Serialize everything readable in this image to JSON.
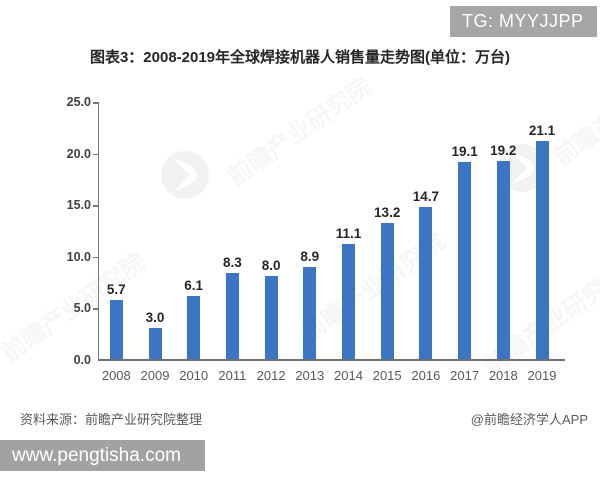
{
  "badge": {
    "text": "TG: MYYJJPP"
  },
  "title": "图表3：2008-2019年全球焊接机器人销售量走势图(单位：万台)",
  "chart_data": {
    "type": "bar",
    "categories": [
      "2008",
      "2009",
      "2010",
      "2011",
      "2012",
      "2013",
      "2014",
      "2015",
      "2016",
      "2017",
      "2018",
      "2019"
    ],
    "values": [
      5.7,
      3.0,
      6.1,
      8.3,
      8.0,
      8.9,
      11.1,
      13.2,
      14.7,
      19.1,
      19.2,
      21.1
    ],
    "title": "图表3：2008-2019年全球焊接机器人销售量走势图(单位：万台)",
    "xlabel": "",
    "ylabel": "",
    "ylim": [
      0,
      25
    ],
    "yticks": [
      "25.0",
      "20.0",
      "15.0",
      "10.0",
      "5.0",
      "0.0"
    ],
    "grid": false,
    "legend": "none",
    "bar_color": "#3b76c4",
    "value_label_color": "#262626"
  },
  "watermark": {
    "text": "前瞻产业研究院"
  },
  "footer": {
    "source": "资料来源：前瞻产业研究院整理",
    "credit": "@前瞻经济学人APP"
  },
  "site_bar": {
    "text": "www.pengtisha.com"
  }
}
